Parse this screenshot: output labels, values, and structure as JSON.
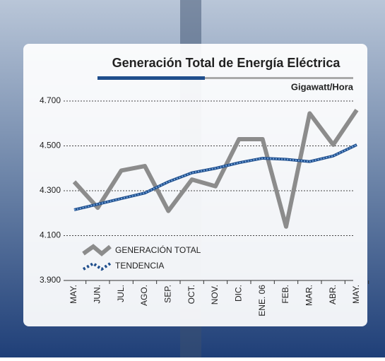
{
  "chart_data": {
    "type": "line",
    "title": "Generación Total de Energía Eléctrica",
    "subtitle": "Gigawatt/Hora",
    "categories": [
      "MAY.",
      "JUN.",
      "JUL.",
      "AGO.",
      "SEP.",
      "OCT.",
      "NOV.",
      "DIC.",
      "ENE. 06",
      "FEB.",
      "MAR.",
      "ABR.",
      "MAY."
    ],
    "series": [
      {
        "name": "GENERACIÓN TOTAL",
        "color": "#8c8c8c",
        "values": [
          4340,
          4224,
          4390,
          4410,
          4210,
          4350,
          4320,
          4530,
          4530,
          4140,
          4645,
          4505,
          4660
        ]
      },
      {
        "name": "TENDENCIA",
        "color": "#1f4e8c",
        "values": [
          4215,
          4240,
          4265,
          4290,
          4340,
          4380,
          4400,
          4425,
          4445,
          4440,
          4430,
          4455,
          4505
        ]
      }
    ],
    "ylim": [
      3900,
      4700
    ],
    "yticks": [
      {
        "value": 3900,
        "label": "3.900"
      },
      {
        "value": 4100,
        "label": "4.100"
      },
      {
        "value": 4300,
        "label": "4.300"
      },
      {
        "value": 4500,
        "label": "4.500"
      },
      {
        "value": 4700,
        "label": "4.700"
      }
    ],
    "grid": true
  }
}
